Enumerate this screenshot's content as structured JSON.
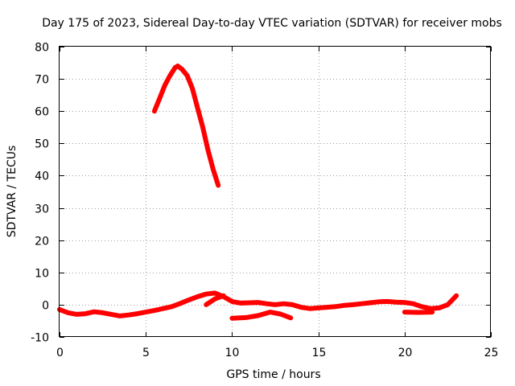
{
  "chart_data": {
    "type": "line",
    "title": "Day 175 of 2023, Sidereal Day-to-day VTEC variation (SDTVAR) for receiver mobs",
    "xlabel": "GPS time / hours",
    "ylabel": "SDTVAR / TECUs",
    "xlim": [
      0,
      25
    ],
    "ylim": [
      -10,
      80
    ],
    "xticks": [
      0,
      5,
      10,
      15,
      20,
      25
    ],
    "yticks": [
      -10,
      0,
      10,
      20,
      30,
      40,
      50,
      60,
      70,
      80
    ],
    "grid": true,
    "color": "#ff0000",
    "series": [
      {
        "name": "high-elevation-arc",
        "x": [
          5.5,
          5.8,
          6.1,
          6.4,
          6.7,
          6.85,
          7.1,
          7.4,
          7.7,
          8.0,
          8.3,
          8.6,
          8.9,
          9.2
        ],
        "y": [
          60,
          64,
          68,
          71,
          73.5,
          74,
          73,
          71,
          67,
          61,
          55,
          48,
          42,
          37
        ]
      },
      {
        "name": "main-track",
        "x": [
          0.0,
          0.5,
          1.0,
          1.5,
          2.0,
          2.5,
          3.0,
          3.5,
          4.0,
          4.5,
          5.0,
          5.5,
          6.0,
          6.5,
          7.0,
          7.5,
          8.0,
          8.5,
          9.0,
          9.5,
          10.0,
          10.5,
          11.0,
          11.5,
          12.0,
          12.5,
          13.0,
          13.5,
          14.0,
          14.5,
          15.0,
          15.5,
          16.0,
          16.5,
          17.0,
          17.5,
          18.0,
          18.5,
          19.0,
          19.5,
          20.0,
          20.5,
          21.0,
          21.5,
          22.0,
          22.5,
          23.0
        ],
        "y": [
          -1.5,
          -2.5,
          -3.0,
          -2.8,
          -2.2,
          -2.5,
          -3.0,
          -3.5,
          -3.2,
          -2.8,
          -2.3,
          -1.8,
          -1.2,
          -0.6,
          0.4,
          1.5,
          2.5,
          3.3,
          3.6,
          2.5,
          1.0,
          0.5,
          0.6,
          0.7,
          0.3,
          0.0,
          0.3,
          0.0,
          -0.8,
          -1.2,
          -1.0,
          -0.8,
          -0.6,
          -0.2,
          0.0,
          0.3,
          0.6,
          0.9,
          1.0,
          0.8,
          0.7,
          0.3,
          -0.6,
          -1.2,
          -1.0,
          0.0,
          2.8
        ]
      },
      {
        "name": "lower-track-a",
        "x": [
          8.5,
          9.0,
          9.5
        ],
        "y": [
          0.0,
          1.8,
          2.8
        ]
      },
      {
        "name": "lower-track-b",
        "x": [
          10.0,
          10.8,
          11.5,
          12.2,
          12.8,
          13.4
        ],
        "y": [
          -4.2,
          -4.0,
          -3.4,
          -2.3,
          -2.9,
          -4.1
        ]
      },
      {
        "name": "lower-track-c",
        "x": [
          20.0,
          20.8,
          21.6
        ],
        "y": [
          -2.3,
          -2.4,
          -2.3
        ]
      }
    ]
  }
}
